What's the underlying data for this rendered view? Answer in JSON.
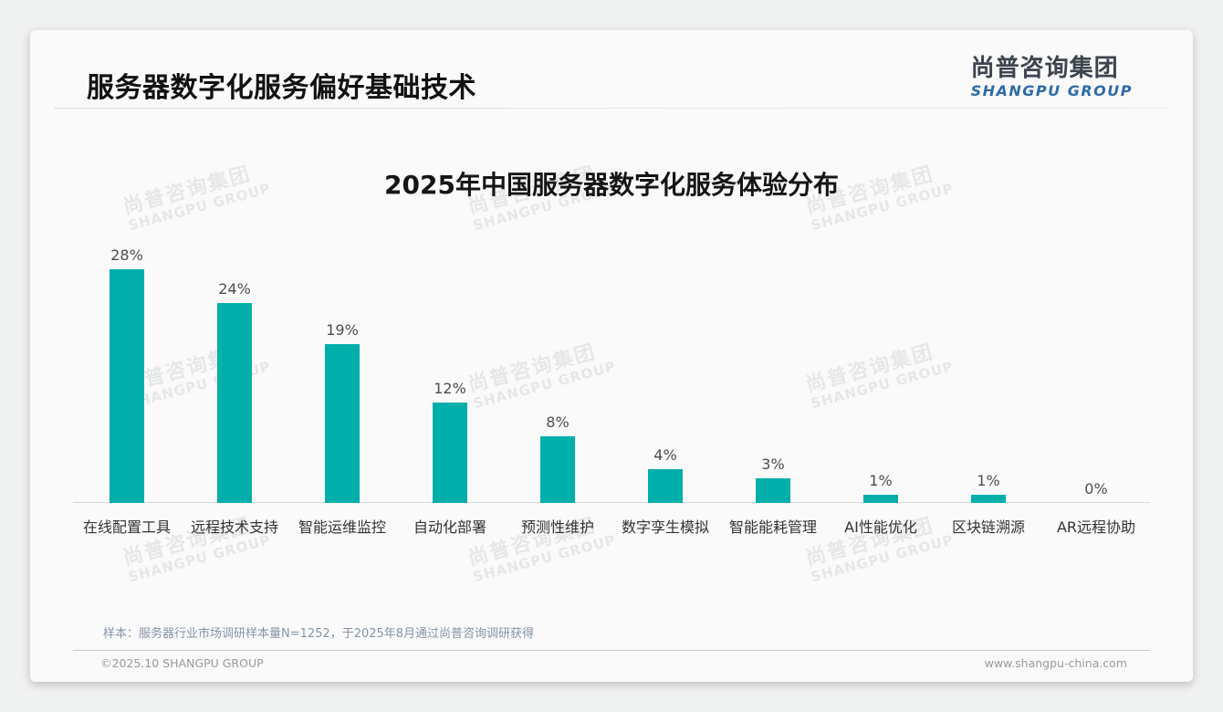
{
  "page": {
    "title": "服务器数字化服务偏好基础技术",
    "logo": {
      "cn": "尚普咨询集团",
      "en": "SHANGPU GROUP"
    },
    "watermark": {
      "cn": "尚普咨询集团",
      "en": "SHANGPU GROUP"
    },
    "footnote": "样本：服务器行业市场调研样本量N=1252，于2025年8月通过尚普咨询调研获得",
    "footer": {
      "copyright": "©2025.10 SHANGPU GROUP",
      "website": "www.shangpu-china.com"
    }
  },
  "chart_data": {
    "type": "bar",
    "title": "2025年中国服务器数字化服务体验分布",
    "categories": [
      "在线配置工具",
      "远程技术支持",
      "智能运维监控",
      "自动化部署",
      "预测性维护",
      "数字孪生模拟",
      "智能能耗管理",
      "AI性能优化",
      "区块链溯源",
      "AR远程协助"
    ],
    "values": [
      28,
      24,
      19,
      12,
      8,
      4,
      3,
      1,
      1,
      0
    ],
    "value_labels": [
      "28%",
      "24%",
      "19%",
      "12%",
      "8%",
      "4%",
      "3%",
      "1%",
      "1%",
      "0%"
    ],
    "bar_color": "#00AFA9",
    "xlabel": "",
    "ylabel": "",
    "ylim": [
      0,
      30
    ],
    "grid": false,
    "legend": false,
    "value_labels_position": "above-bars"
  }
}
